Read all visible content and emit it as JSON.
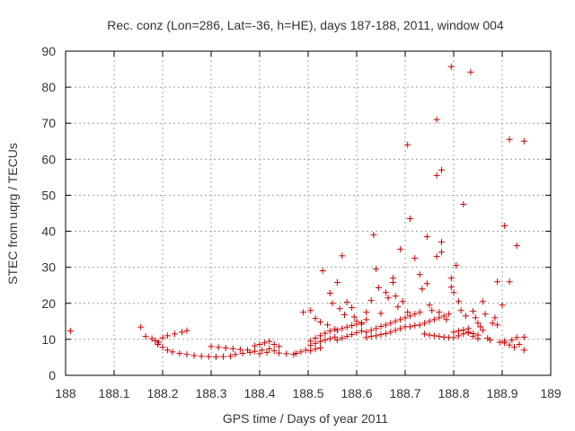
{
  "chart_data": {
    "type": "scatter",
    "title": "Rec. conz (Lon=286, Lat=-36, h=HE), days 187-188, 2011, window 004",
    "xlabel": "GPS time / Days of year 2011",
    "ylabel": "STEC from uqrg / TECUs",
    "xlim": [
      188,
      189
    ],
    "ylim": [
      0,
      90
    ],
    "x_ticks": [
      "188",
      "188.1",
      "188.2",
      "188.3",
      "188.4",
      "188.5",
      "188.6",
      "188.7",
      "188.8",
      "188.9",
      "189"
    ],
    "y_ticks": [
      "0",
      "10",
      "20",
      "30",
      "40",
      "50",
      "60",
      "70",
      "80",
      "90"
    ],
    "grid": true,
    "marker": "+",
    "color": "#cc0000",
    "series": [
      {
        "name": "",
        "points": [
          [
            188.01,
            12.3
          ],
          [
            188.155,
            13.4
          ],
          [
            188.165,
            10.8
          ],
          [
            188.178,
            10.2
          ],
          [
            188.185,
            9.6
          ],
          [
            188.192,
            9.2
          ],
          [
            188.2,
            10.4
          ],
          [
            188.21,
            11.0
          ],
          [
            188.225,
            11.5
          ],
          [
            188.24,
            12.0
          ],
          [
            188.25,
            12.4
          ],
          [
            188.19,
            8.6
          ],
          [
            188.2,
            7.8
          ],
          [
            188.21,
            7.0
          ],
          [
            188.22,
            6.5
          ],
          [
            188.235,
            6.1
          ],
          [
            188.25,
            5.8
          ],
          [
            188.265,
            5.5
          ],
          [
            188.28,
            5.3
          ],
          [
            188.295,
            5.2
          ],
          [
            188.31,
            5.1
          ],
          [
            188.325,
            5.2
          ],
          [
            188.34,
            5.3
          ],
          [
            188.3,
            8.0
          ],
          [
            188.315,
            7.8
          ],
          [
            188.33,
            7.6
          ],
          [
            188.345,
            7.4
          ],
          [
            188.36,
            7.2
          ],
          [
            188.375,
            7.0
          ],
          [
            188.35,
            5.8
          ],
          [
            188.365,
            6.1
          ],
          [
            188.38,
            6.4
          ],
          [
            188.39,
            6.7
          ],
          [
            188.405,
            7.0
          ],
          [
            188.42,
            7.4
          ],
          [
            188.39,
            8.2
          ],
          [
            188.4,
            8.6
          ],
          [
            188.41,
            9.0
          ],
          [
            188.42,
            9.4
          ],
          [
            188.43,
            8.6
          ],
          [
            188.44,
            8.0
          ],
          [
            188.4,
            6.0
          ],
          [
            188.415,
            6.4
          ],
          [
            188.43,
            6.8
          ],
          [
            188.44,
            6.2
          ],
          [
            188.455,
            6.0
          ],
          [
            188.47,
            5.8
          ],
          [
            188.475,
            6.1
          ],
          [
            188.485,
            6.5
          ],
          [
            188.495,
            7.0
          ],
          [
            188.505,
            6.8
          ],
          [
            188.515,
            7.3
          ],
          [
            188.525,
            7.6
          ],
          [
            188.49,
            17.5
          ],
          [
            188.505,
            18.0
          ],
          [
            188.515,
            15.8
          ],
          [
            188.53,
            29.0
          ],
          [
            188.525,
            14.8
          ],
          [
            188.54,
            14.0
          ],
          [
            188.505,
            9.5
          ],
          [
            188.515,
            10.3
          ],
          [
            188.525,
            11.0
          ],
          [
            188.535,
            11.7
          ],
          [
            188.545,
            12.3
          ],
          [
            188.555,
            12.8
          ],
          [
            188.505,
            8.3
          ],
          [
            188.515,
            8.9
          ],
          [
            188.525,
            9.4
          ],
          [
            188.535,
            9.8
          ],
          [
            188.545,
            10.2
          ],
          [
            188.555,
            10.6
          ],
          [
            188.545,
            22.8
          ],
          [
            188.55,
            20.0
          ],
          [
            188.56,
            25.8
          ],
          [
            188.565,
            18.5
          ],
          [
            188.57,
            33.2
          ],
          [
            188.575,
            16.8
          ],
          [
            188.58,
            20.3
          ],
          [
            188.59,
            18.8
          ],
          [
            188.595,
            16.2
          ],
          [
            188.6,
            15.0
          ],
          [
            188.61,
            14.2
          ],
          [
            188.62,
            15.5
          ],
          [
            188.56,
            12.5
          ],
          [
            188.57,
            13.0
          ],
          [
            188.58,
            13.4
          ],
          [
            188.59,
            13.8
          ],
          [
            188.6,
            14.2
          ],
          [
            188.61,
            14.6
          ],
          [
            188.56,
            9.8
          ],
          [
            188.57,
            10.3
          ],
          [
            188.58,
            10.8
          ],
          [
            188.59,
            11.3
          ],
          [
            188.6,
            11.8
          ],
          [
            188.61,
            12.3
          ],
          [
            188.62,
            17.5
          ],
          [
            188.63,
            20.8
          ],
          [
            188.635,
            39.0
          ],
          [
            188.64,
            29.5
          ],
          [
            188.645,
            24.3
          ],
          [
            188.65,
            17.2
          ],
          [
            188.62,
            12.0
          ],
          [
            188.63,
            12.5
          ],
          [
            188.64,
            13.0
          ],
          [
            188.65,
            13.6
          ],
          [
            188.66,
            14.0
          ],
          [
            188.67,
            14.5
          ],
          [
            188.62,
            10.5
          ],
          [
            188.63,
            10.8
          ],
          [
            188.64,
            11.0
          ],
          [
            188.65,
            11.3
          ],
          [
            188.66,
            11.6
          ],
          [
            188.67,
            12.0
          ],
          [
            188.66,
            23.0
          ],
          [
            188.665,
            21.5
          ],
          [
            188.675,
            25.8
          ],
          [
            188.675,
            27.0
          ],
          [
            188.68,
            22.0
          ],
          [
            188.685,
            19.0
          ],
          [
            188.69,
            35.0
          ],
          [
            188.695,
            20.5
          ],
          [
            188.705,
            64.0
          ],
          [
            188.71,
            43.5
          ],
          [
            188.705,
            17.5
          ],
          [
            188.72,
            32.5
          ],
          [
            188.68,
            15.0
          ],
          [
            188.69,
            15.5
          ],
          [
            188.7,
            16.0
          ],
          [
            188.71,
            16.5
          ],
          [
            188.72,
            17.0
          ],
          [
            188.73,
            17.5
          ],
          [
            188.68,
            12.5
          ],
          [
            188.69,
            13.0
          ],
          [
            188.7,
            13.5
          ],
          [
            188.71,
            13.5
          ],
          [
            188.72,
            13.8
          ],
          [
            188.73,
            14.0
          ],
          [
            188.73,
            28.0
          ],
          [
            188.735,
            24.0
          ],
          [
            188.745,
            25.5
          ],
          [
            188.745,
            38.5
          ],
          [
            188.75,
            19.5
          ],
          [
            188.755,
            18.0
          ],
          [
            188.74,
            14.5
          ],
          [
            188.75,
            15.0
          ],
          [
            188.76,
            15.5
          ],
          [
            188.77,
            16.0
          ],
          [
            188.78,
            16.5
          ],
          [
            188.79,
            17.0
          ],
          [
            188.74,
            11.5
          ],
          [
            188.75,
            11.2
          ],
          [
            188.76,
            11.0
          ],
          [
            188.77,
            10.8
          ],
          [
            188.78,
            10.6
          ],
          [
            188.79,
            10.5
          ],
          [
            188.765,
            71.0
          ],
          [
            188.765,
            55.5
          ],
          [
            188.775,
            57.0
          ],
          [
            188.765,
            33.0
          ],
          [
            188.775,
            34.2
          ],
          [
            188.775,
            37.0
          ],
          [
            188.77,
            17.5
          ],
          [
            188.785,
            15.5
          ],
          [
            188.795,
            85.7
          ],
          [
            188.795,
            27.0
          ],
          [
            188.795,
            24.5
          ],
          [
            188.8,
            23.0
          ],
          [
            188.805,
            30.5
          ],
          [
            188.81,
            20.5
          ],
          [
            188.815,
            18.0
          ],
          [
            188.82,
            47.5
          ],
          [
            188.825,
            16.5
          ],
          [
            188.83,
            13.0
          ],
          [
            188.835,
            84.2
          ],
          [
            188.84,
            17.8
          ],
          [
            188.845,
            16.0
          ],
          [
            188.85,
            14.5
          ],
          [
            188.855,
            13.5
          ],
          [
            188.86,
            12.5
          ],
          [
            188.8,
            12.0
          ],
          [
            188.81,
            12.3
          ],
          [
            188.82,
            12.6
          ],
          [
            188.83,
            12.0
          ],
          [
            188.84,
            11.6
          ],
          [
            188.85,
            11.2
          ],
          [
            188.8,
            10.5
          ],
          [
            188.81,
            11.0
          ],
          [
            188.82,
            11.5
          ],
          [
            188.83,
            11.8
          ],
          [
            188.84,
            10.8
          ],
          [
            188.85,
            10.2
          ],
          [
            188.86,
            20.5
          ],
          [
            188.865,
            17.0
          ],
          [
            188.87,
            10.3
          ],
          [
            188.875,
            9.8
          ],
          [
            188.88,
            14.5
          ],
          [
            188.885,
            16.0
          ],
          [
            188.89,
            26.0
          ],
          [
            188.89,
            14.0
          ],
          [
            188.895,
            9.2
          ],
          [
            188.9,
            19.5
          ],
          [
            188.905,
            41.5
          ],
          [
            188.905,
            9.0
          ],
          [
            188.915,
            65.5
          ],
          [
            188.915,
            26.0
          ],
          [
            188.92,
            9.8
          ],
          [
            188.925,
            7.8
          ],
          [
            188.93,
            36.0
          ],
          [
            188.93,
            10.5
          ],
          [
            188.935,
            8.6
          ],
          [
            188.945,
            65.0
          ],
          [
            188.945,
            10.6
          ],
          [
            188.945,
            7.0
          ],
          [
            188.915,
            8.4
          ],
          [
            188.905,
            9.5
          ]
        ]
      }
    ]
  }
}
